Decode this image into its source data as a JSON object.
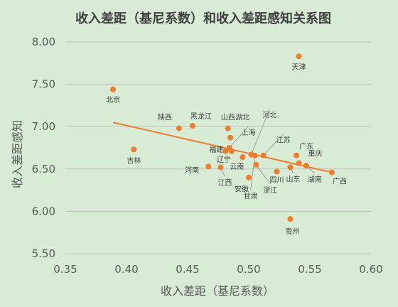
{
  "colors": {
    "background": "#d7ebd5",
    "point": "#ed7d31",
    "trendline": "#ed7d31",
    "grid": "#bfbfbf",
    "axis_text": "#595959",
    "label_text": "#404040"
  },
  "chart_data": {
    "type": "scatter",
    "title": "收入差距（基尼系数）和收入差距感知关系图",
    "xlabel": "收入差距（基尼系数）",
    "ylabel": "收入差距感知",
    "xlim": [
      0.35,
      0.6
    ],
    "ylim": [
      5.5,
      8.0
    ],
    "xticks": [
      "0.35",
      "0.40",
      "0.45",
      "0.50",
      "0.55",
      "0.60"
    ],
    "yticks": [
      "5.50",
      "6.00",
      "6.50",
      "7.00",
      "7.50",
      "8.00"
    ],
    "grid": "horizontal",
    "legend": "none",
    "trendline": {
      "type": "linear",
      "x": [
        0.389,
        0.568
      ],
      "y": [
        7.05,
        6.46
      ]
    },
    "points": [
      {
        "label": "天津",
        "x": 0.541,
        "y": 7.83
      },
      {
        "label": "北京",
        "x": 0.389,
        "y": 7.44
      },
      {
        "label": "陕西",
        "x": 0.443,
        "y": 6.98
      },
      {
        "label": "黑龙江",
        "x": 0.454,
        "y": 7.01
      },
      {
        "label": "山西",
        "x": 0.483,
        "y": 6.98
      },
      {
        "label": "湖北",
        "x": 0.485,
        "y": 6.87
      },
      {
        "label": "河北",
        "x": 0.502,
        "y": 6.67
      },
      {
        "label": "上海",
        "x": 0.484,
        "y": 6.75
      },
      {
        "label": "福建",
        "x": 0.481,
        "y": 6.71
      },
      {
        "label": "江苏",
        "x": 0.512,
        "y": 6.66
      },
      {
        "label": "吉林",
        "x": 0.406,
        "y": 6.73
      },
      {
        "label": "辽宁",
        "x": 0.486,
        "y": 6.71
      },
      {
        "label": "云南",
        "x": 0.495,
        "y": 6.64
      },
      {
        "label": "河南",
        "x": 0.467,
        "y": 6.53
      },
      {
        "label": "江西",
        "x": 0.477,
        "y": 6.52
      },
      {
        "label": "广东",
        "x": 0.539,
        "y": 6.66
      },
      {
        "label": "重庆",
        "x": 0.541,
        "y": 6.57
      },
      {
        "label": "湖南",
        "x": 0.547,
        "y": 6.54
      },
      {
        "label": "广西",
        "x": 0.568,
        "y": 6.46
      },
      {
        "label": "四川",
        "x": 0.523,
        "y": 6.47
      },
      {
        "label": "山东",
        "x": 0.534,
        "y": 6.52
      },
      {
        "label": "浙江",
        "x": 0.506,
        "y": 6.55
      },
      {
        "label": "安徽",
        "x": 0.5,
        "y": 6.4
      },
      {
        "label": "甘肃",
        "x": 0.505,
        "y": 6.66
      },
      {
        "label": "贵州",
        "x": 0.534,
        "y": 5.91
      }
    ]
  }
}
